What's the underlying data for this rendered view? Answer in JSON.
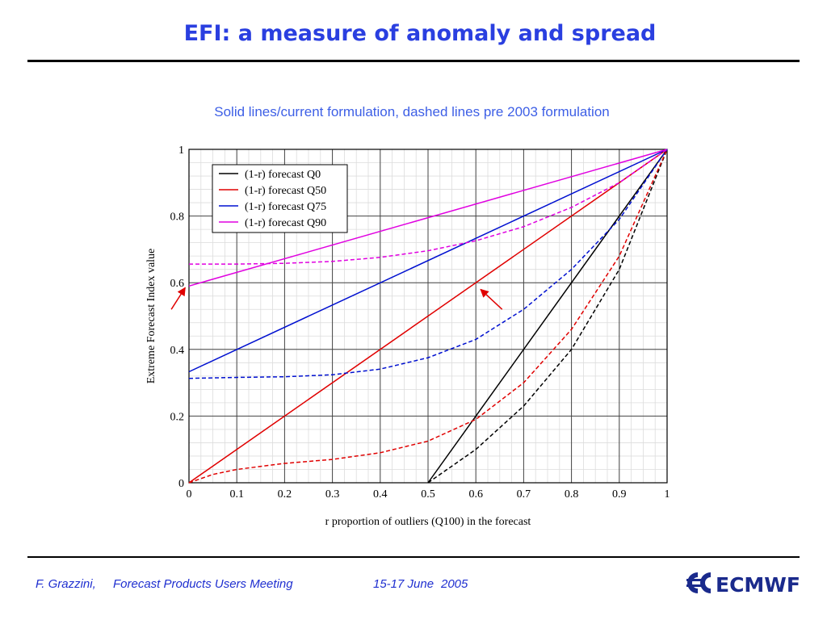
{
  "slide": {
    "title": "EFI: a measure of anomaly and spread",
    "subtitle": "Solid lines/current formulation, dashed lines pre 2003 formulation"
  },
  "footer": {
    "author": "F. Grazzini,",
    "event": "Forecast Products Users Meeting",
    "dates": "15-17 June",
    "year": "2005",
    "logo_text": "ECMWF"
  },
  "colors": {
    "title": "#2a3fe0",
    "footer": "#1f2fd0",
    "logo": "#1a2a8c"
  },
  "chart_data": {
    "type": "line",
    "title": "",
    "xlabel": "r proportion of outliers (Q100) in the forecast",
    "ylabel": "Extreme Forecast Index value",
    "xlim": [
      0,
      1
    ],
    "ylim": [
      0,
      1
    ],
    "xticks": [
      0,
      0.1,
      0.2,
      0.3,
      0.4,
      0.5,
      0.6,
      0.7,
      0.8,
      0.9,
      1
    ],
    "xtick_labels": [
      "0",
      "0.1",
      "0.2",
      "0.3",
      "0.4",
      "0.5",
      "0.6",
      "0.7",
      "0.8",
      "0.9",
      "1"
    ],
    "yticks": [
      0,
      0.2,
      0.4,
      0.6,
      0.8,
      1
    ],
    "ytick_labels": [
      "0",
      "0.2",
      "0.4",
      "0.6",
      "0.8",
      "1"
    ],
    "grid": true,
    "legend_position": "top-left",
    "series": [
      {
        "name": "(1-r) forecast Q0",
        "color": "#000000",
        "style": "solid",
        "x": [
          0.5,
          1.0
        ],
        "y": [
          0.0,
          1.0
        ]
      },
      {
        "name": "(1-r) forecast Q50",
        "color": "#e00000",
        "style": "solid",
        "x": [
          0.0,
          1.0
        ],
        "y": [
          0.0,
          1.0
        ]
      },
      {
        "name": "(1-r) forecast Q75",
        "color": "#0010d0",
        "style": "solid",
        "x": [
          0.0,
          1.0
        ],
        "y": [
          0.333,
          1.0
        ]
      },
      {
        "name": "(1-r) forecast Q90",
        "color": "#e000e0",
        "style": "solid",
        "x": [
          0.0,
          1.0
        ],
        "y": [
          0.59,
          1.0
        ]
      },
      {
        "color": "#000000",
        "style": "dashed",
        "x": [
          0.5,
          0.6,
          0.7,
          0.8,
          0.9,
          1.0
        ],
        "y": [
          0.0,
          0.1,
          0.23,
          0.4,
          0.64,
          1.0
        ]
      },
      {
        "color": "#e00000",
        "style": "dashed",
        "x": [
          0.0,
          0.05,
          0.1,
          0.2,
          0.3,
          0.4,
          0.5,
          0.6,
          0.7,
          0.8,
          0.9,
          1.0
        ],
        "y": [
          0.0,
          0.025,
          0.04,
          0.058,
          0.07,
          0.09,
          0.125,
          0.19,
          0.3,
          0.46,
          0.68,
          1.0
        ]
      },
      {
        "color": "#0010d0",
        "style": "dashed",
        "x": [
          0.0,
          0.1,
          0.2,
          0.3,
          0.4,
          0.5,
          0.6,
          0.7,
          0.8,
          0.9,
          1.0
        ],
        "y": [
          0.313,
          0.316,
          0.318,
          0.324,
          0.341,
          0.375,
          0.43,
          0.52,
          0.64,
          0.79,
          1.0
        ]
      },
      {
        "color": "#e000e0",
        "style": "dashed",
        "x": [
          0.0,
          0.1,
          0.2,
          0.3,
          0.4,
          0.5,
          0.6,
          0.7,
          0.8,
          0.9,
          1.0
        ],
        "y": [
          0.656,
          0.656,
          0.658,
          0.664,
          0.676,
          0.696,
          0.726,
          0.768,
          0.826,
          0.9,
          1.0
        ]
      }
    ],
    "annotations": [
      {
        "type": "arrow",
        "color": "#e00000",
        "from": [
          -0.037,
          0.52
        ],
        "to": [
          -0.008,
          0.585
        ]
      },
      {
        "type": "arrow",
        "color": "#e00000",
        "from": [
          0.655,
          0.52
        ],
        "to": [
          0.61,
          0.58
        ]
      }
    ]
  }
}
